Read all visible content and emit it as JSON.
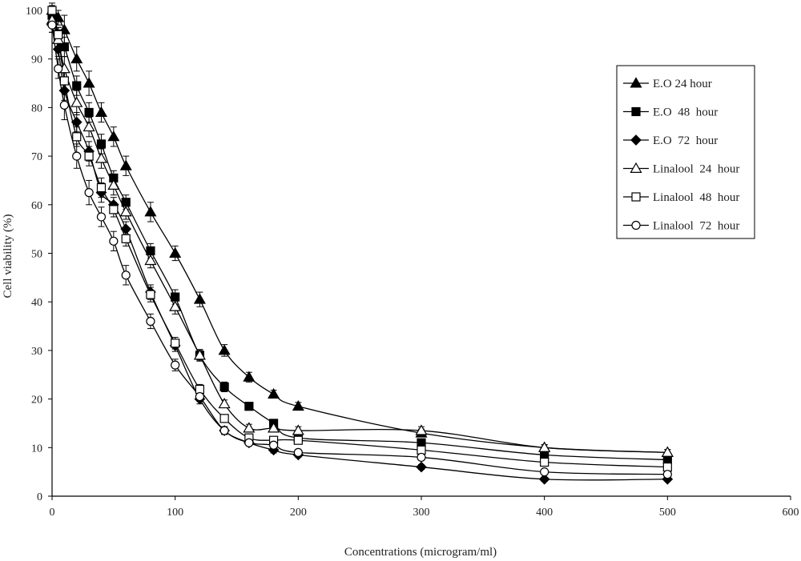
{
  "chart_data": {
    "type": "line",
    "xlabel": "Concentrations (microgram/ml)",
    "ylabel": "Cell viability (%)",
    "xlim": [
      0,
      600
    ],
    "ylim": [
      0,
      100
    ],
    "xticks": [
      0,
      100,
      200,
      300,
      400,
      500,
      600
    ],
    "yticks": [
      0,
      10,
      20,
      30,
      40,
      50,
      60,
      70,
      80,
      90,
      100
    ],
    "grid": false,
    "legend_position": "top-right",
    "x": [
      0,
      5,
      10,
      20,
      30,
      40,
      50,
      60,
      80,
      100,
      120,
      140,
      160,
      180,
      200,
      300,
      400,
      500
    ],
    "series": [
      {
        "name": "E.O 24 hour",
        "marker": "triangle-filled",
        "values": [
          100,
          98.5,
          96,
          90,
          85,
          79,
          74,
          68,
          58.5,
          50,
          40.5,
          30,
          24.5,
          21,
          18.5,
          13,
          10,
          9
        ],
        "errors": [
          1.5,
          1.5,
          3,
          2.5,
          2.5,
          2,
          2,
          2,
          2,
          1.5,
          1.5,
          1.2,
          1,
          0.8,
          0.8,
          0.8,
          0.6,
          0.6
        ]
      },
      {
        "name": "E.O  48  hour",
        "marker": "square-filled",
        "values": [
          99,
          95,
          92.5,
          84.5,
          79,
          72.5,
          65.5,
          60.5,
          50.5,
          41,
          29,
          22.5,
          18.5,
          15,
          12,
          11,
          8.5,
          7.5
        ],
        "errors": [
          1,
          1.5,
          2,
          2,
          2,
          2,
          1.5,
          1.5,
          1.5,
          1.5,
          1.2,
          1,
          0.8,
          0.8,
          0.8,
          0.6,
          0.6,
          0.5
        ]
      },
      {
        "name": "E.O  72  hour",
        "marker": "diamond-filled",
        "values": [
          97,
          92,
          83.5,
          77,
          71,
          62.5,
          60,
          55,
          42,
          31,
          20,
          13.5,
          11,
          9.5,
          8.5,
          6,
          3.5,
          3.5
        ],
        "errors": [
          1.5,
          1.5,
          2,
          2,
          2,
          2,
          1.5,
          1.5,
          1.5,
          1.2,
          1,
          0.8,
          0.6,
          0.6,
          0.5,
          0.5,
          0.4,
          0.4
        ]
      },
      {
        "name": "Linalool  24  hour",
        "marker": "triangle-open",
        "values": [
          98,
          94,
          88,
          81,
          76,
          69.5,
          64,
          58.5,
          48.5,
          39,
          29,
          19,
          14,
          14,
          13.5,
          13.5,
          10,
          9
        ],
        "errors": [
          1.5,
          2,
          2.5,
          2.5,
          2,
          2,
          2,
          1.5,
          1.5,
          1.5,
          1,
          0.8,
          0.8,
          0.8,
          0.8,
          0.8,
          0.6,
          0.6
        ]
      },
      {
        "name": "Linalool  48  hour",
        "marker": "square-open",
        "values": [
          100,
          95,
          85.5,
          74,
          70,
          63.5,
          59,
          53,
          41.5,
          31.5,
          22,
          16,
          12,
          11.5,
          11.5,
          9.5,
          7,
          6
        ],
        "errors": [
          1,
          1.5,
          2.5,
          2,
          2,
          2,
          1.5,
          1.5,
          1.5,
          1.2,
          1,
          0.8,
          0.6,
          0.6,
          0.6,
          0.5,
          0.5,
          0.4
        ]
      },
      {
        "name": "Linalool  72  hour",
        "marker": "circle-open",
        "values": [
          97,
          88,
          80.5,
          70,
          62.5,
          57.5,
          52.5,
          45.5,
          36,
          27,
          20.5,
          13.5,
          11,
          10.5,
          9,
          8,
          5,
          4.5
        ],
        "errors": [
          1.5,
          2,
          3,
          2.5,
          2.5,
          2,
          2,
          2,
          1.5,
          1.2,
          1,
          0.8,
          0.6,
          0.6,
          0.5,
          0.5,
          0.4,
          0.4
        ]
      }
    ]
  }
}
